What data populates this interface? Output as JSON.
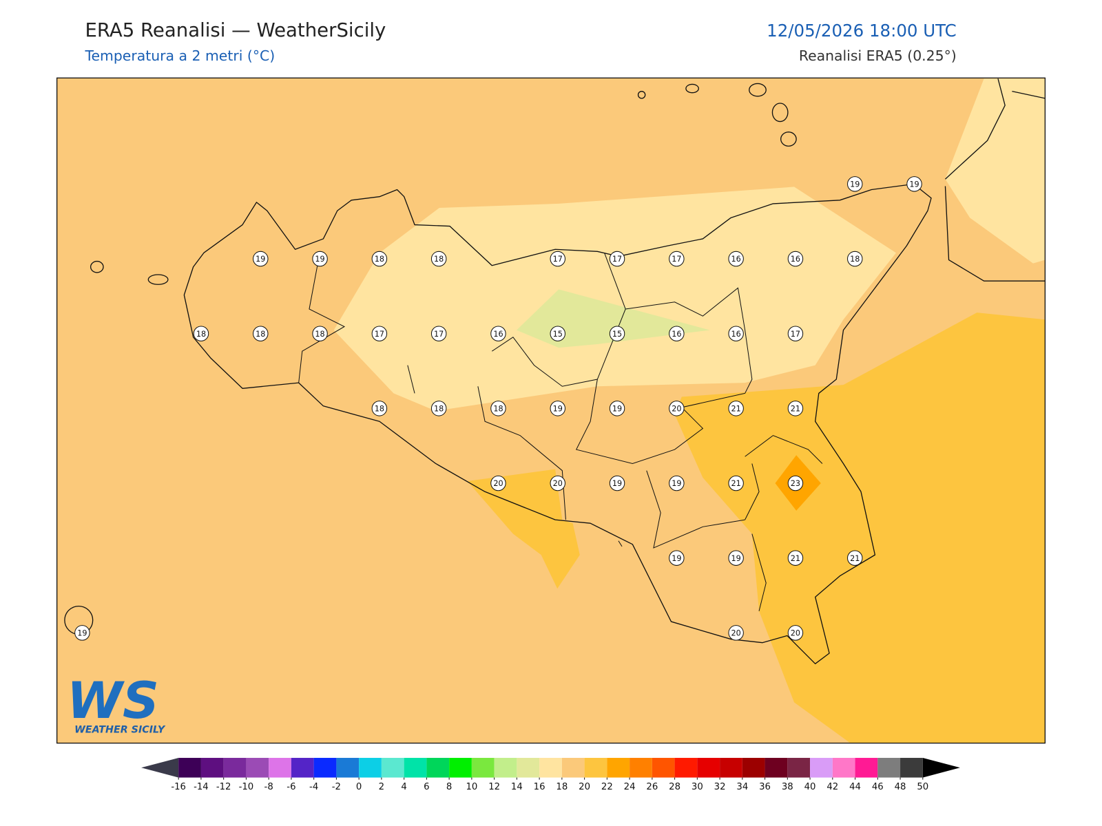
{
  "header": {
    "title": "ERA5 Reanalisi — WeatherSicily",
    "subtitle": "Temperatura a 2 metri (°C)",
    "datetime": "12/05/2026 18:00 UTC",
    "source": "Reanalisi ERA5 (0.25°)"
  },
  "stations": {
    "rows": [
      [
        null,
        null,
        null,
        null,
        null,
        null,
        null,
        null,
        null,
        null,
        null,
        null,
        null,
        19,
        19
      ],
      [
        null,
        null,
        null,
        19,
        19,
        18,
        18,
        null,
        17,
        17,
        17,
        16,
        16,
        18,
        null
      ],
      [
        null,
        null,
        18,
        18,
        18,
        17,
        17,
        16,
        15,
        15,
        16,
        16,
        17,
        null,
        null
      ],
      [
        null,
        null,
        null,
        null,
        null,
        18,
        18,
        18,
        19,
        19,
        20,
        21,
        21,
        null,
        null
      ],
      [
        null,
        null,
        null,
        null,
        null,
        null,
        null,
        20,
        20,
        19,
        19,
        21,
        23,
        null,
        null
      ],
      [
        null,
        null,
        null,
        null,
        null,
        null,
        null,
        null,
        null,
        null,
        19,
        19,
        21,
        21,
        null
      ],
      [
        19,
        null,
        null,
        null,
        null,
        null,
        null,
        null,
        null,
        null,
        null,
        20,
        20,
        null,
        null
      ]
    ]
  },
  "colorbar": {
    "ticks": [
      -16,
      -14,
      -12,
      -10,
      -8,
      -6,
      -4,
      -2,
      0,
      2,
      4,
      6,
      8,
      10,
      12,
      14,
      16,
      18,
      20,
      22,
      24,
      26,
      28,
      30,
      32,
      34,
      36,
      38,
      40,
      42,
      44,
      46,
      48,
      50
    ],
    "colors": [
      "#3d0057",
      "#5e0f80",
      "#7a2a9c",
      "#9b4bb5",
      "#dd74e8",
      "#5424c7",
      "#0a2aff",
      "#1a7ad6",
      "#0ccfe6",
      "#5be8d0",
      "#00e3a8",
      "#00d65a",
      "#00ef00",
      "#7ae83e",
      "#c2ee8b",
      "#e2e89a",
      "#ffe4a0",
      "#fbc97a",
      "#fdc53f",
      "#ffa500",
      "#ff8000",
      "#ff5500",
      "#ff1a00",
      "#e60000",
      "#c70000",
      "#9c0000",
      "#6e0020",
      "#7a2545",
      "#d99cf7",
      "#ff77c8",
      "#ff1a94",
      "#7d7d7d",
      "#3b3b3b"
    ],
    "under_color": "#3a3a4a",
    "over_color": "#000000"
  },
  "logo": {
    "mark": "WS",
    "name": "WEATHER SICILY"
  }
}
